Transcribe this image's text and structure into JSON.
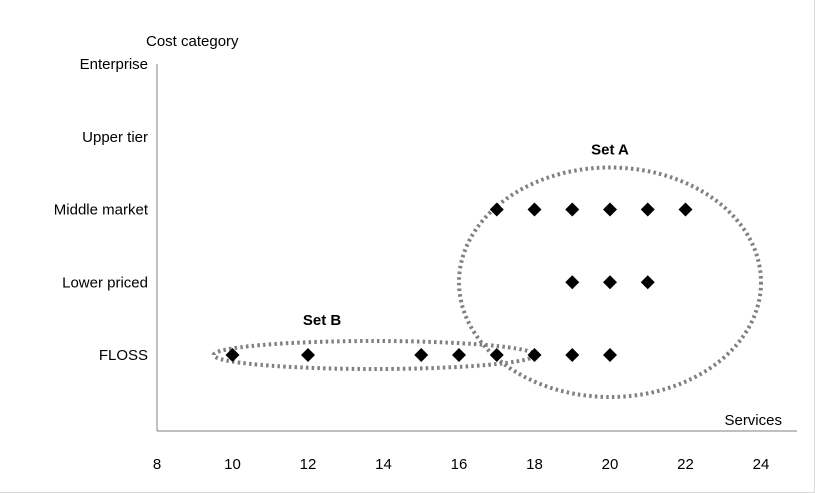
{
  "chart_data": {
    "type": "scatter",
    "ylabel": "Cost category",
    "xlabel": "Services",
    "xlim": [
      8,
      24
    ],
    "x_ticks": [
      8,
      10,
      12,
      14,
      16,
      18,
      20,
      22,
      24
    ],
    "y_categories": [
      "FLOSS",
      "Lower priced",
      "Middle market",
      "Upper tier",
      "Enterprise"
    ],
    "grid": false,
    "series": [
      {
        "marker": "diamond",
        "color": "#000000",
        "points": [
          {
            "x": 10,
            "y": "FLOSS"
          },
          {
            "x": 12,
            "y": "FLOSS"
          },
          {
            "x": 15,
            "y": "FLOSS"
          },
          {
            "x": 16,
            "y": "FLOSS"
          },
          {
            "x": 17,
            "y": "FLOSS"
          },
          {
            "x": 18,
            "y": "FLOSS"
          },
          {
            "x": 19,
            "y": "FLOSS"
          },
          {
            "x": 20,
            "y": "FLOSS"
          },
          {
            "x": 19,
            "y": "Lower priced"
          },
          {
            "x": 20,
            "y": "Lower priced"
          },
          {
            "x": 21,
            "y": "Lower priced"
          },
          {
            "x": 17,
            "y": "Middle market"
          },
          {
            "x": 18,
            "y": "Middle market"
          },
          {
            "x": 19,
            "y": "Middle market"
          },
          {
            "x": 20,
            "y": "Middle market"
          },
          {
            "x": 21,
            "y": "Middle market"
          },
          {
            "x": 22,
            "y": "Middle market"
          }
        ]
      }
    ],
    "annotations": [
      {
        "label": "Set A",
        "style": "dotted-ellipse",
        "color": "#808080",
        "x_range": [
          16,
          24
        ],
        "y_range": [
          "FLOSS",
          "Middle market"
        ]
      },
      {
        "label": "Set B",
        "style": "dotted-ellipse",
        "color": "#808080",
        "x_range": [
          9.5,
          18
        ],
        "y_range": [
          "FLOSS",
          "FLOSS"
        ]
      }
    ]
  }
}
